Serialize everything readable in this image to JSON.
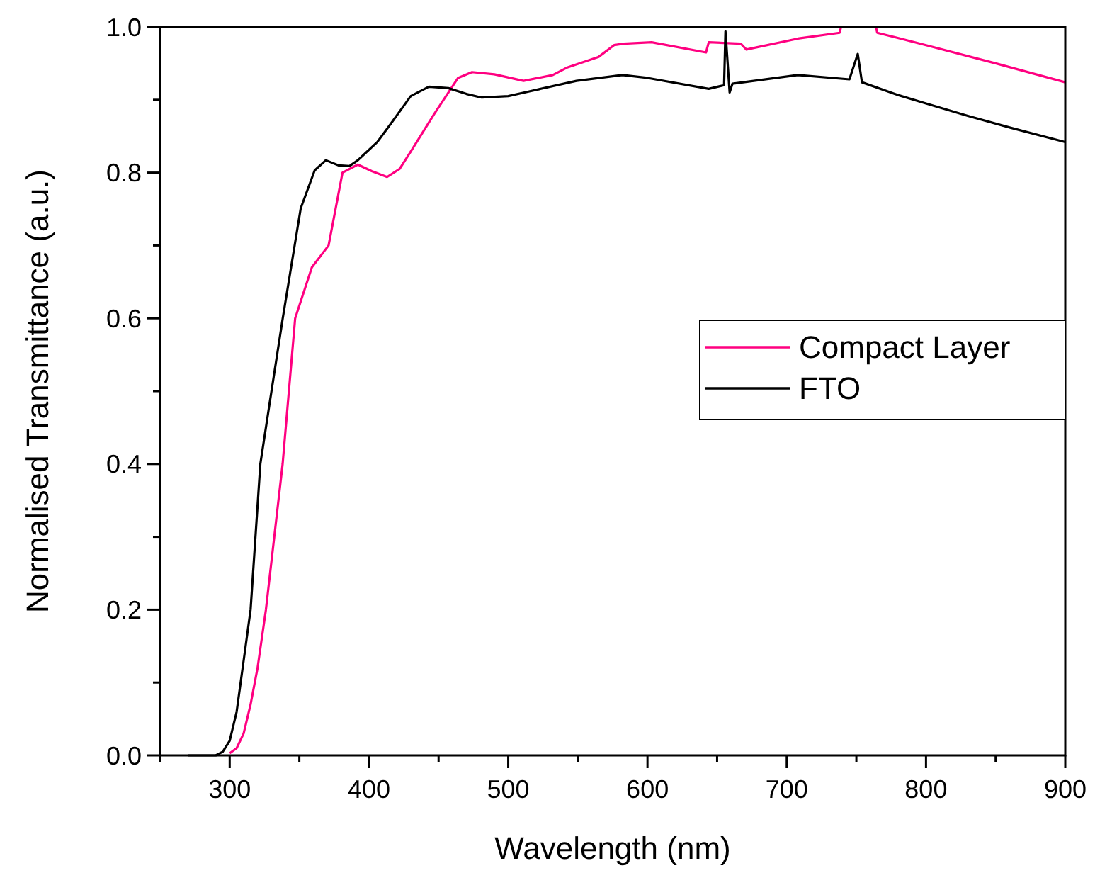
{
  "chart_data": {
    "type": "line",
    "xlabel": "Wavelength (nm)",
    "ylabel": "Normalised Transmittance (a.u.)",
    "xlim": [
      250,
      900
    ],
    "ylim": [
      0,
      1.0
    ],
    "xticks": [
      {
        "value": 250,
        "label": null
      },
      300,
      {
        "value": 350,
        "label": null
      },
      400,
      {
        "value": 450,
        "label": null
      },
      500,
      {
        "value": 550,
        "label": null
      },
      600,
      {
        "value": 650,
        "label": null
      },
      700,
      {
        "value": 750,
        "label": null
      },
      800,
      {
        "value": 850,
        "label": null
      },
      900
    ],
    "yticks": [
      {
        "value": 0,
        "label": "0.0"
      },
      {
        "value": 0.1,
        "label": null
      },
      0.2,
      {
        "value": 0.3,
        "label": null
      },
      0.4,
      {
        "value": 0.5,
        "label": null
      },
      0.6,
      {
        "value": 0.7,
        "label": null
      },
      0.8,
      {
        "value": 0.9,
        "label": null
      },
      {
        "value": 1.0,
        "label": "1.0"
      }
    ],
    "grid": false,
    "legend": "right",
    "marker": "none",
    "line_style": "solid",
    "series": [
      {
        "name": "Compact Layer",
        "color": "#ff0080",
        "x": [
          300,
          305,
          310,
          315,
          320,
          326,
          332,
          338,
          347,
          359,
          371,
          381,
          392,
          402,
          413,
          422,
          430,
          447,
          464,
          474,
          490,
          511,
          532,
          542,
          565,
          576,
          583,
          603,
          642,
          644,
          667,
          671,
          708,
          738,
          739,
          764,
          765,
          800,
          850,
          900
        ],
        "values": [
          0.003,
          0.01,
          0.03,
          0.07,
          0.12,
          0.2,
          0.3,
          0.4,
          0.6,
          0.67,
          0.7,
          0.8,
          0.811,
          0.802,
          0.794,
          0.805,
          0.829,
          0.881,
          0.93,
          0.938,
          0.935,
          0.926,
          0.934,
          0.944,
          0.959,
          0.975,
          0.977,
          0.979,
          0.965,
          0.979,
          0.977,
          0.969,
          0.984,
          0.992,
          1.0,
          1.0,
          0.992,
          0.975,
          0.95,
          0.924
        ]
      },
      {
        "name": "FTO",
        "color": "#000000",
        "x": [
          270,
          290,
          295,
          300,
          305,
          310,
          315,
          322,
          330,
          338,
          345,
          351,
          361,
          369,
          378,
          386,
          392,
          406,
          416,
          430,
          443,
          457,
          470,
          481,
          500,
          514,
          549,
          582,
          600,
          644,
          655,
          656,
          659,
          661,
          708,
          745,
          751,
          754,
          779,
          800,
          830,
          860,
          900
        ],
        "values": [
          0,
          0,
          0.005,
          0.02,
          0.06,
          0.13,
          0.2,
          0.4,
          0.5,
          0.599,
          0.681,
          0.751,
          0.803,
          0.817,
          0.81,
          0.809,
          0.817,
          0.842,
          0.868,
          0.905,
          0.918,
          0.916,
          0.908,
          0.903,
          0.905,
          0.911,
          0.926,
          0.934,
          0.93,
          0.915,
          0.92,
          0.994,
          0.91,
          0.922,
          0.934,
          0.928,
          0.963,
          0.924,
          0.907,
          0.895,
          0.878,
          0.862,
          0.842
        ]
      }
    ]
  }
}
